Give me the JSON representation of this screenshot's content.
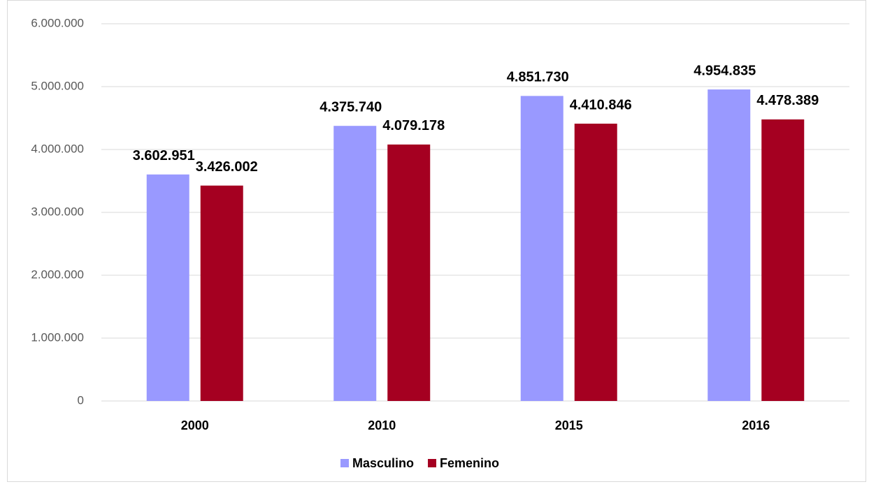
{
  "chart_data": {
    "type": "bar",
    "categories": [
      "2000",
      "2010",
      "2015",
      "2016"
    ],
    "series": [
      {
        "name": "Masculino",
        "color": "#9999ff",
        "values": [
          3602951,
          4375740,
          4851730,
          4954835
        ],
        "value_labels": [
          "3.602.951",
          "4.375.740",
          "4.851.730",
          "4.954.835"
        ]
      },
      {
        "name": "Femenino",
        "color": "#a50021",
        "values": [
          3426002,
          4079178,
          4410846,
          4478389
        ],
        "value_labels": [
          "3.426.002",
          "4.079.178",
          "4.410.846",
          "4.478.389"
        ]
      }
    ],
    "ylim": [
      0,
      6000000
    ],
    "yticks": [
      0,
      {
        "value": 1000000,
        "label": "1.000.000"
      },
      {
        "value": 2000000,
        "label": "2.000.000"
      },
      {
        "value": 3000000,
        "label": "3.000.000"
      },
      {
        "value": 4000000,
        "label": "4.000.000"
      },
      {
        "value": 5000000,
        "label": "5.000.000"
      },
      {
        "value": 6000000,
        "label": "6.000.000"
      }
    ],
    "grid": true,
    "legend": "bottom"
  }
}
